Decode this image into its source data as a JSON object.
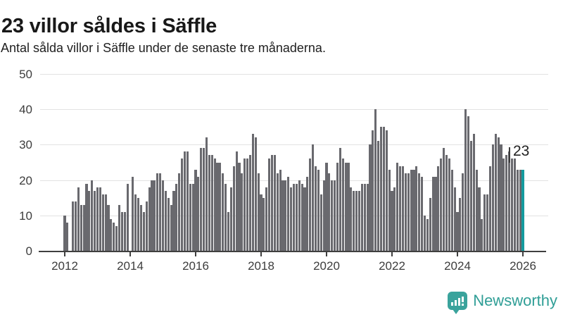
{
  "header": {
    "title": "23 villor såldes i Säffle",
    "subtitle": "Antal sålda villor i Säffle under de senaste tre månaderna."
  },
  "chart_data": {
    "type": "bar",
    "title": "23 villor såldes i Säffle",
    "subtitle": "Antal sålda villor i Säffle under de senaste tre månaderna.",
    "start_month": "2012-01",
    "end_month": "2026-01",
    "values": [
      10,
      8,
      0,
      14,
      14,
      18,
      13,
      13,
      19,
      17,
      20,
      17,
      18,
      18,
      16,
      16,
      13,
      9,
      8,
      7,
      13,
      11,
      11,
      19,
      0,
      21,
      16,
      15,
      13,
      11,
      14,
      18,
      20,
      20,
      22,
      22,
      20,
      17,
      15,
      13,
      17,
      19,
      22,
      26,
      28,
      28,
      19,
      19,
      23,
      21,
      29,
      29,
      32,
      27,
      27,
      26,
      25,
      25,
      22,
      19,
      11,
      18,
      24,
      28,
      25,
      22,
      26,
      26,
      27,
      33,
      32,
      22,
      16,
      15,
      18,
      26,
      27,
      27,
      22,
      23,
      20,
      20,
      21,
      18,
      19,
      19,
      20,
      19,
      18,
      21,
      26,
      30,
      24,
      23,
      16,
      20,
      25,
      22,
      20,
      20,
      25,
      29,
      26,
      25,
      25,
      18,
      17,
      17,
      17,
      19,
      19,
      19,
      30,
      34,
      40,
      31,
      35,
      35,
      34,
      23,
      17,
      18,
      25,
      24,
      24,
      22,
      22,
      23,
      23,
      24,
      22,
      21,
      10,
      9,
      15,
      21,
      21,
      24,
      26,
      29,
      27,
      26,
      23,
      18,
      11,
      15,
      22,
      40,
      38,
      31,
      33,
      23,
      18,
      9,
      16,
      16,
      24,
      30,
      33,
      32,
      30,
      26,
      27,
      28,
      26,
      26,
      23,
      23,
      23
    ],
    "highlight_last_value": 23,
    "annotation": {
      "text": "23"
    },
    "x_tick_labels": [
      "2012",
      "2014",
      "2016",
      "2018",
      "2020",
      "2022",
      "2024",
      "2026"
    ],
    "y_tick_labels": [
      "0",
      "10",
      "20",
      "30",
      "40",
      "50"
    ],
    "ylim": [
      0,
      50
    ],
    "grid": true,
    "legend": "none",
    "bar_color": "#69696e",
    "highlight_color": "#149a9e"
  },
  "footer": {
    "brand": "Newsworthy"
  }
}
